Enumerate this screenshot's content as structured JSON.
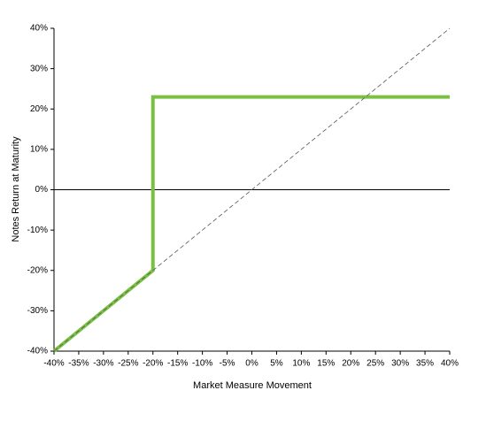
{
  "chart_data": {
    "type": "line",
    "x_label": "Market Measure Movement",
    "y_label": "Notes Return at Maturity",
    "series": [
      {
        "color": "#7ac143",
        "x": [
          -40,
          -20,
          -20,
          40
        ],
        "values": [
          -40,
          -20,
          23,
          23
        ]
      },
      {
        "color": "#555555",
        "dashed": true,
        "x": [
          -40,
          40
        ],
        "values": [
          -40,
          40
        ]
      }
    ],
    "xlim": [
      -40,
      40
    ],
    "xticks": [
      {
        "value": -40,
        "label": "-40%"
      },
      {
        "value": -35,
        "label": "-35%"
      },
      {
        "value": -30,
        "label": "-30%"
      },
      {
        "value": -25,
        "label": "-25%"
      },
      {
        "value": -20,
        "label": "-20%"
      },
      {
        "value": -15,
        "label": "-15%"
      },
      {
        "value": -10,
        "label": "-10%"
      },
      {
        "value": -5,
        "label": "-5%"
      },
      {
        "value": 0,
        "label": "0%"
      },
      {
        "value": 5,
        "label": "5%"
      },
      {
        "value": 10,
        "label": "10%"
      },
      {
        "value": 15,
        "label": "15%"
      },
      {
        "value": 20,
        "label": "20%"
      },
      {
        "value": 25,
        "label": "25%"
      },
      {
        "value": 30,
        "label": "30%"
      },
      {
        "value": 35,
        "label": "35%"
      },
      {
        "value": 40,
        "label": "40%"
      }
    ],
    "ylim": [
      -40,
      40
    ],
    "yticks": [
      {
        "value": -40,
        "label": "-40%"
      },
      {
        "value": -30,
        "label": "-30%"
      },
      {
        "value": -20,
        "label": "-20%"
      },
      {
        "value": -10,
        "label": "-10%"
      },
      {
        "value": 0,
        "label": "0%"
      },
      {
        "value": 10,
        "label": "10%"
      },
      {
        "value": 20,
        "label": "20%"
      },
      {
        "value": 30,
        "label": "30%"
      },
      {
        "value": 40,
        "label": "40%"
      }
    ],
    "zero_line": true,
    "grid": false
  }
}
